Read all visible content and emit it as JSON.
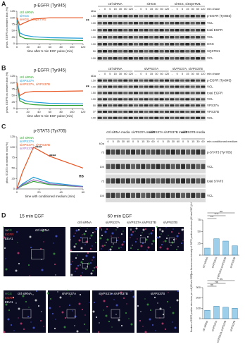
{
  "chart_data": [
    {
      "type": "line",
      "panel": "A",
      "title": "p-EGFR (Tyr845)",
      "ylabel": "phos. EGFR on western blot (%)",
      "xlabel": "time after 5 min EGF pulse (min)",
      "x": [
        0,
        5,
        15,
        30,
        60,
        120
      ],
      "xlim": [
        0,
        120
      ],
      "xticks": [
        0,
        20,
        40,
        60,
        80,
        100,
        120
      ],
      "ylim": [
        0,
        125
      ],
      "yticks": [
        0,
        25,
        50,
        75,
        100,
        125
      ],
      "series": [
        {
          "name": "ctrl siRNA",
          "color": "#2ca02c",
          "values": [
            100,
            30,
            20,
            18,
            15,
            12
          ]
        },
        {
          "name": "siHGS",
          "color": "#1f9bd7",
          "values": [
            100,
            42,
            32,
            27,
            23,
            21
          ]
        },
        {
          "name": "siHGS, siSQSTM1",
          "color": "#e8531f",
          "values": [
            100,
            72,
            82,
            95,
            100,
            100
          ]
        }
      ],
      "annotations": [
        "**"
      ]
    },
    {
      "type": "line",
      "panel": "B",
      "title": "p-EGFR (Tyr845)",
      "ylabel": "phos. EGFR on western blot (%)",
      "xlabel": "time after 5 min EGF pulse (min)",
      "x": [
        0,
        5,
        15,
        30,
        60,
        120
      ],
      "xlim": [
        0,
        120
      ],
      "xticks": [
        0,
        20,
        40,
        60,
        80,
        100,
        120
      ],
      "ylim": [
        0,
        125
      ],
      "yticks": [
        0,
        25,
        50,
        75,
        100,
        125
      ],
      "series": [
        {
          "name": "ctrl siRNA",
          "color": "#2ca02c",
          "values": [
            100,
            30,
            20,
            15,
            12,
            12
          ]
        },
        {
          "name": "siVPS37A",
          "color": "#1f9bd7",
          "values": [
            100,
            40,
            30,
            25,
            20,
            18
          ]
        },
        {
          "name": "siVPS37A, siVPS37B",
          "color": "#e8531f",
          "values": [
            100,
            50,
            62,
            66,
            66,
            68
          ]
        }
      ],
      "annotations": [
        "**"
      ]
    },
    {
      "type": "line",
      "panel": "C",
      "title": "p-STAT3 (Tyr705)",
      "ylabel": "phos. STAT3 on western blot (%)",
      "xlabel": "time with conditioned medium (min)",
      "x": [
        0,
        5,
        15,
        30,
        60
      ],
      "xlim": [
        0,
        60
      ],
      "xticks": [
        0,
        20,
        40,
        60
      ],
      "ylim": [
        0,
        125
      ],
      "yticks": [
        0,
        25,
        50,
        75,
        100,
        125
      ],
      "series": [
        {
          "name": "ctrl siRNA",
          "color": "#2ca02c",
          "values": [
            0,
            8,
            18,
            10,
            5
          ]
        },
        {
          "name": "siVPS37A",
          "color": "#1f9bd7",
          "values": [
            0,
            12,
            28,
            15,
            6
          ]
        },
        {
          "name": "siVPS37A, siVPS37B",
          "color": "#e8531f",
          "values": [
            0,
            40,
            100,
            78,
            50
          ]
        },
        {
          "name": "siVPS37B",
          "color": "#9467bd",
          "values": [
            0,
            10,
            22,
            12,
            5
          ]
        }
      ],
      "annotations": [
        "****",
        "****",
        "ns"
      ]
    },
    {
      "type": "bar",
      "panel": "D",
      "ylabel": "Sum fluorescence intensity of EGFR positive structures (60 min EGF) (A.U.)",
      "categories": [
        "ctrl siRNA",
        "siVPS37A",
        "siVPS37A siVPS37B",
        "siVPS37B"
      ],
      "values": [
        15,
        35,
        30,
        20
      ],
      "color": "#4fa8d8",
      "ylim": [
        0,
        75
      ],
      "yticks": [
        0,
        25,
        50,
        75
      ],
      "annotations": [
        "***",
        "****",
        "ns"
      ]
    },
    {
      "type": "bar",
      "panel": "D",
      "ylabel": "Number of EGFR positive structures per cell (60 min EGF)",
      "categories": [
        "ctrl siRNA",
        "siVPS37A",
        "siVPS37A siVPS37B",
        "siVPS37B"
      ],
      "values": [
        80,
        120,
        110,
        100
      ],
      "color": "#4fa8d8",
      "ylim": [
        0,
        300
      ],
      "yticks": [
        0,
        100,
        200,
        300
      ],
      "annotations": [
        "ns",
        "ns",
        "ns"
      ]
    }
  ],
  "blots": [
    {
      "groups": [
        "ctrl siRNA",
        "siHGS",
        "siHGS, siSQSTM1"
      ],
      "lanes": [
        "-",
        "0",
        "5",
        "15",
        "30",
        "60",
        "120"
      ],
      "note": "min chase",
      "unit": "kDa",
      "rows": [
        {
          "label": "p-EGFR (Tyr845)",
          "kda": "150"
        },
        {
          "label": "VCL",
          "kda": "100"
        },
        {
          "label": "total EGFR",
          "kda": "150"
        },
        {
          "label": "VCL",
          "kda": "100"
        },
        {
          "label": "HGS",
          "kda": "100"
        },
        {
          "label": "SQSTM1",
          "kda": "50"
        },
        {
          "label": "VCL",
          "kda": "100"
        }
      ]
    },
    {
      "groups": [
        "ctrl siRNA",
        "siVPS37A",
        "siVPS37A, siVPS37B"
      ],
      "lanes": [
        "-",
        "0",
        "5",
        "15",
        "30",
        "60",
        "120"
      ],
      "note": "min chase",
      "unit": "kDa",
      "rows": [
        {
          "label": "p-EGFR (Tyr845)",
          "kda": "150"
        },
        {
          "label": "VCL",
          "kda": "100"
        },
        {
          "label": "total EGFR",
          "kda": "150"
        },
        {
          "label": "VCL",
          "kda": "100"
        },
        {
          "label": "VPS37A",
          "kda": "50"
        },
        {
          "label": "VPS37B",
          "kda": "37"
        },
        {
          "label": "VCL",
          "kda": "100"
        }
      ]
    },
    {
      "groups": [
        "ctrl siRNA media",
        "siVPS37A media",
        "siVPS37A siVPS37B media",
        "siVPS37B media"
      ],
      "lanes": [
        "0",
        "5",
        "15",
        "30",
        "60"
      ],
      "note": "min conditioned medium",
      "unit": "kDa",
      "rows": [
        {
          "label": "p-STAT3 (Tyr705)",
          "kda": "75"
        },
        {
          "label": "VCL",
          "kda": "100"
        },
        {
          "label": "total STAT3",
          "kda": "75"
        },
        {
          "label": "VCL",
          "kda": "100"
        }
      ]
    }
  ],
  "panel_d": {
    "left_title": "15 min EGF",
    "right_title": "60 min EGF",
    "channels": [
      "HGS",
      "EGFR",
      "EEA1"
    ],
    "conditions": [
      "ctrl siRNA",
      "siVPS37A",
      "siVPS37A siVPS37B",
      "siVPS37B"
    ],
    "insets": [
      "i",
      "ii",
      "iii",
      "iv"
    ]
  }
}
